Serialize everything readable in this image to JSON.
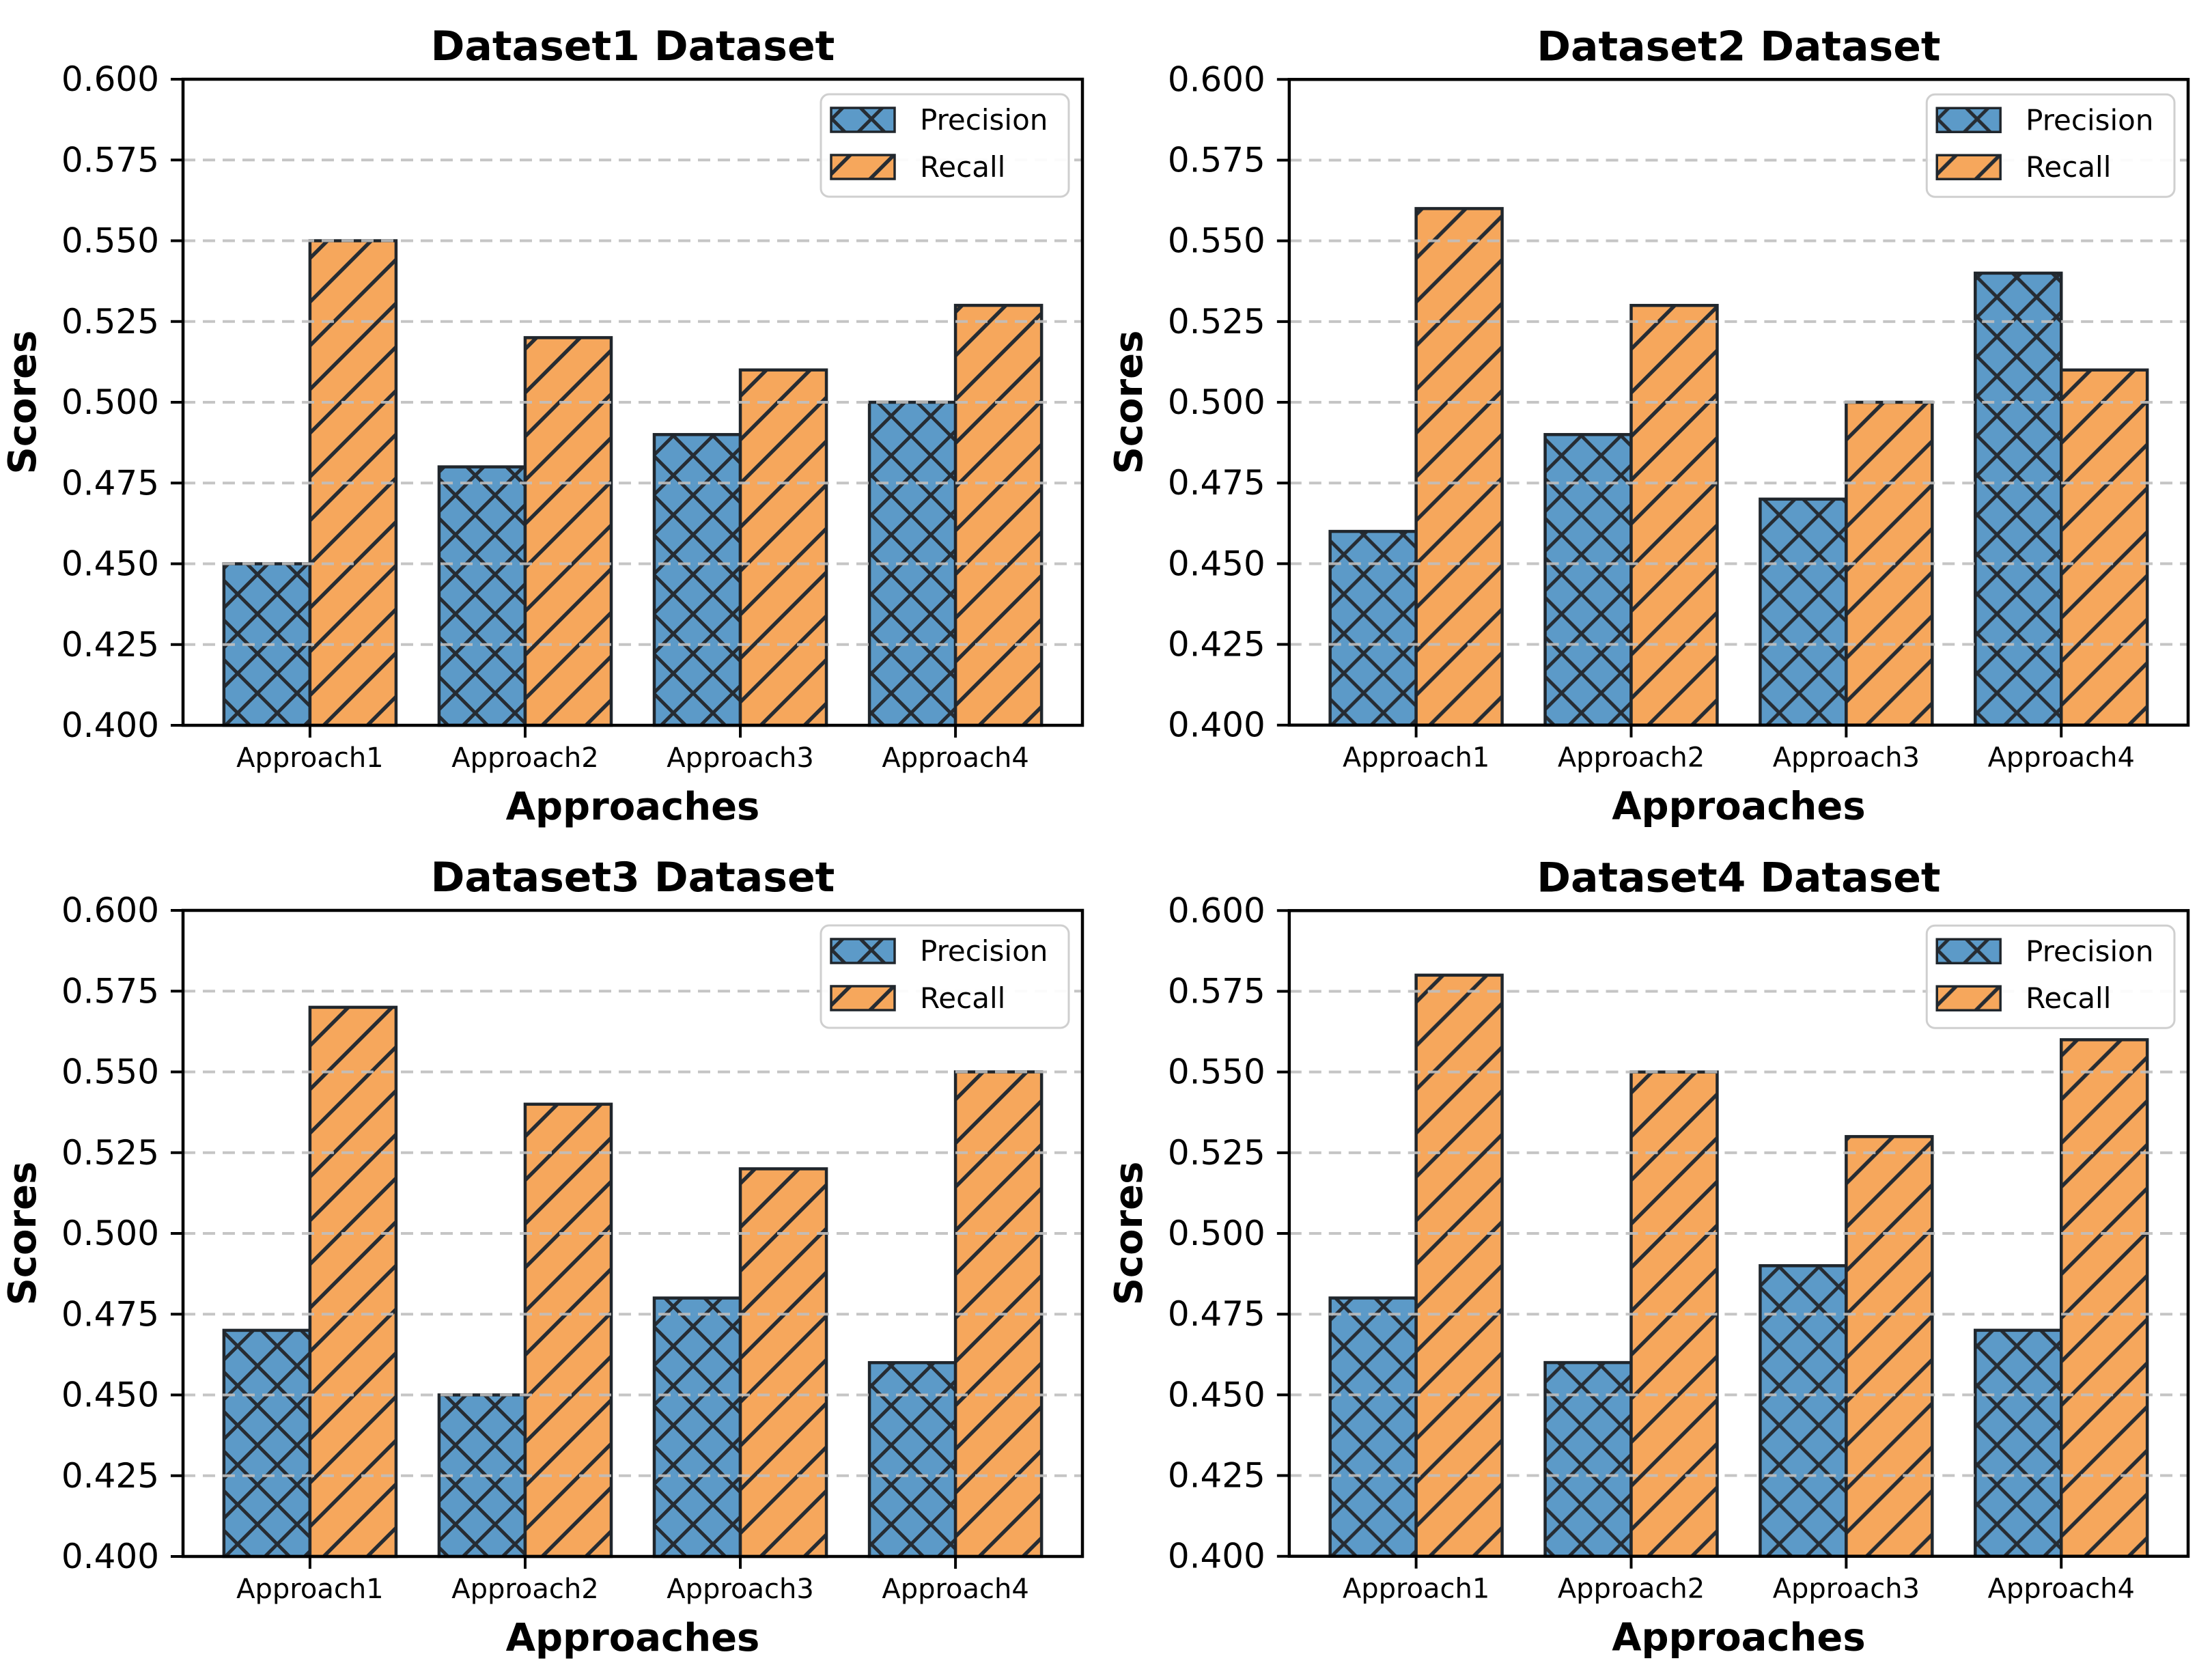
{
  "figure_title": "",
  "style": {
    "background": "#ffffff",
    "precision_fill": "#5C9AC8",
    "recall_fill": "#F6A75C",
    "hatch_color": "#262c33",
    "bar_edge_color": "#20262c",
    "grid_color": "#bfbfbf",
    "axis_color": "#000000",
    "legend_border_color": "#cfcfcf",
    "precision_hatch": "xx",
    "recall_hatch": "//",
    "grid_style": "dashed horizontal, drawn above bars"
  },
  "chart_data": [
    {
      "type": "bar",
      "title": "Dataset1 Dataset",
      "xlabel": "Approaches",
      "ylabel": "Scores",
      "categories": [
        "Approach1",
        "Approach2",
        "Approach3",
        "Approach4"
      ],
      "series": [
        {
          "name": "Precision",
          "values": [
            0.45,
            0.48,
            0.49,
            0.5
          ]
        },
        {
          "name": "Recall",
          "values": [
            0.55,
            0.52,
            0.51,
            0.53
          ]
        }
      ],
      "ylim": [
        0.4,
        0.6
      ],
      "ytick_step": 0.025,
      "ytick_labels": [
        "0.400",
        "0.425",
        "0.450",
        "0.475",
        "0.500",
        "0.525",
        "0.550",
        "0.575",
        "0.600"
      ],
      "legend_position": "upper right",
      "grid": true
    },
    {
      "type": "bar",
      "title": "Dataset2 Dataset",
      "xlabel": "Approaches",
      "ylabel": "Scores",
      "categories": [
        "Approach1",
        "Approach2",
        "Approach3",
        "Approach4"
      ],
      "series": [
        {
          "name": "Precision",
          "values": [
            0.46,
            0.49,
            0.47,
            0.54
          ]
        },
        {
          "name": "Recall",
          "values": [
            0.56,
            0.53,
            0.5,
            0.51
          ]
        }
      ],
      "ylim": [
        0.4,
        0.6
      ],
      "ytick_step": 0.025,
      "ytick_labels": [
        "0.400",
        "0.425",
        "0.450",
        "0.475",
        "0.500",
        "0.525",
        "0.550",
        "0.575",
        "0.600"
      ],
      "legend_position": "upper right",
      "grid": true
    },
    {
      "type": "bar",
      "title": "Dataset3 Dataset",
      "xlabel": "Approaches",
      "ylabel": "Scores",
      "categories": [
        "Approach1",
        "Approach2",
        "Approach3",
        "Approach4"
      ],
      "series": [
        {
          "name": "Precision",
          "values": [
            0.47,
            0.45,
            0.48,
            0.46
          ]
        },
        {
          "name": "Recall",
          "values": [
            0.57,
            0.54,
            0.52,
            0.55
          ]
        }
      ],
      "ylim": [
        0.4,
        0.6
      ],
      "ytick_step": 0.025,
      "ytick_labels": [
        "0.400",
        "0.425",
        "0.450",
        "0.475",
        "0.500",
        "0.525",
        "0.550",
        "0.575",
        "0.600"
      ],
      "legend_position": "upper right",
      "grid": true
    },
    {
      "type": "bar",
      "title": "Dataset4 Dataset",
      "xlabel": "Approaches",
      "ylabel": "Scores",
      "categories": [
        "Approach1",
        "Approach2",
        "Approach3",
        "Approach4"
      ],
      "series": [
        {
          "name": "Precision",
          "values": [
            0.48,
            0.46,
            0.49,
            0.47
          ]
        },
        {
          "name": "Recall",
          "values": [
            0.58,
            0.55,
            0.53,
            0.56
          ]
        }
      ],
      "ylim": [
        0.4,
        0.6
      ],
      "ytick_step": 0.025,
      "ytick_labels": [
        "0.400",
        "0.425",
        "0.450",
        "0.475",
        "0.500",
        "0.525",
        "0.550",
        "0.575",
        "0.600"
      ],
      "legend_position": "upper right",
      "grid": true
    }
  ]
}
